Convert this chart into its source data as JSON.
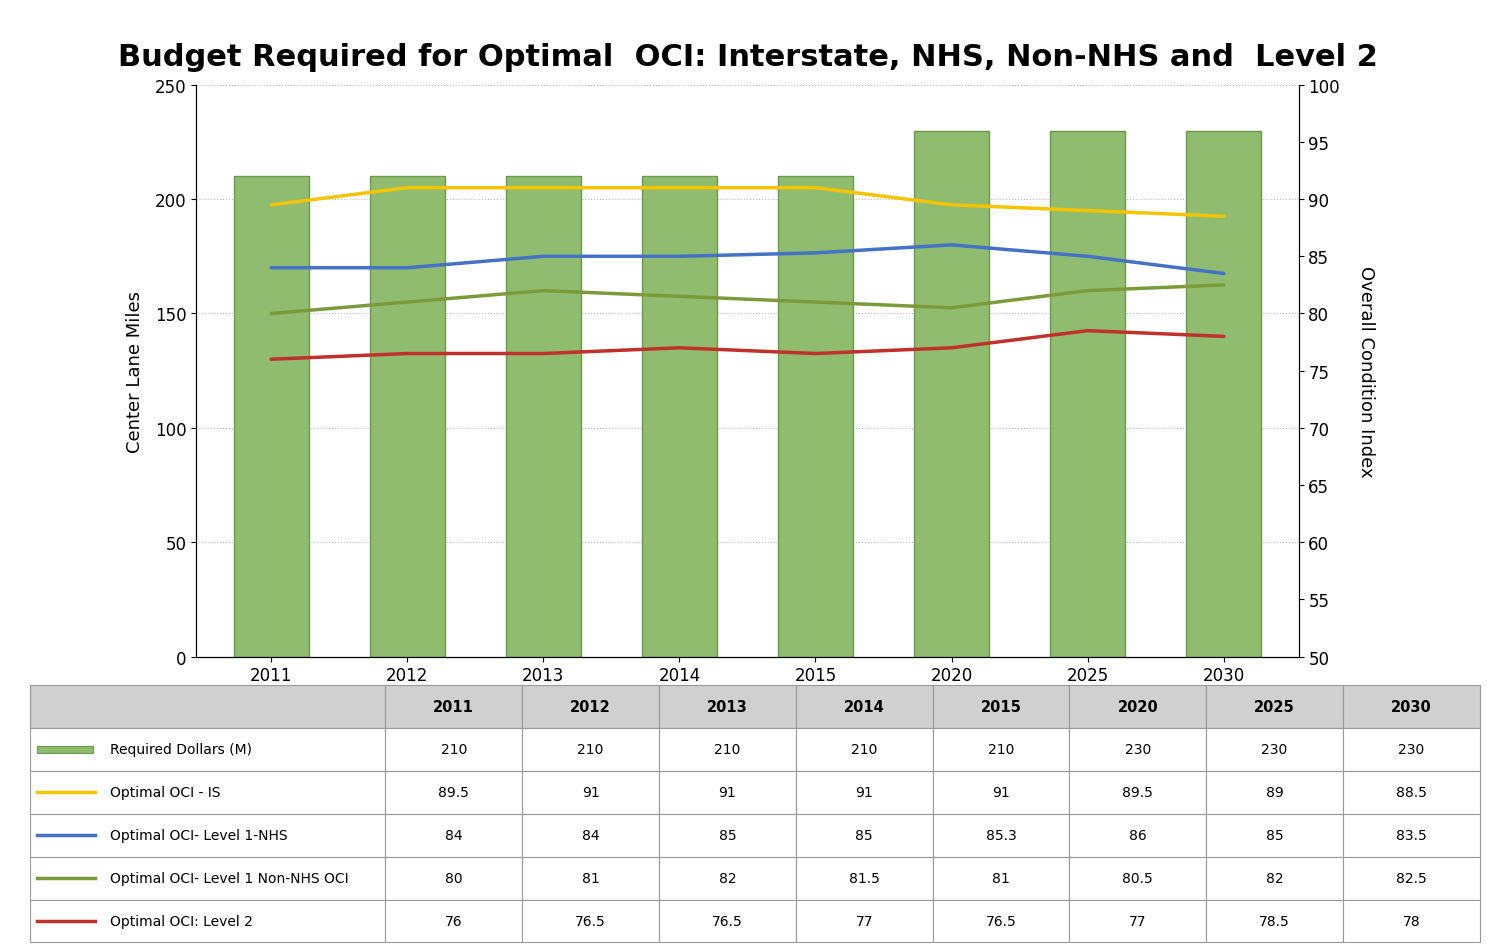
{
  "title": "Budget Required for Optimal  OCI: Interstate, NHS, Non-NHS and  Level 2",
  "years": [
    2011,
    2012,
    2013,
    2014,
    2015,
    2020,
    2025,
    2030
  ],
  "bar_values": [
    210,
    210,
    210,
    210,
    210,
    230,
    230,
    230
  ],
  "bar_color": "#8FBC6F",
  "bar_edge_color": "#6A9A4A",
  "oci_is": [
    89.5,
    91.0,
    91.0,
    91.0,
    91.0,
    89.5,
    89.0,
    88.5
  ],
  "oci_nhs": [
    84.0,
    84.0,
    85.0,
    85.0,
    85.3,
    86.0,
    85.0,
    83.5
  ],
  "oci_non_nhs": [
    80.0,
    81.0,
    82.0,
    81.5,
    81.0,
    80.5,
    82.0,
    82.5
  ],
  "oci_level2": [
    76.0,
    76.5,
    76.5,
    77.0,
    76.5,
    77.0,
    78.5,
    78.0
  ],
  "line_colors": [
    "#F5C400",
    "#4472C4",
    "#7B9B3A",
    "#C0312B"
  ],
  "line_labels": [
    "Optimal OCI - IS",
    "Optimal OCI- Level 1-NHS",
    "Optimal OCI- Level 1 Non-NHS OCI",
    "Optimal OCI: Level 2"
  ],
  "bar_label": "Required Dollars (M)",
  "left_ylabel": "Center Lane Miles",
  "right_ylabel": "Overall Condition Index",
  "ylim_left": [
    0,
    250
  ],
  "ylim_right": [
    50,
    100
  ],
  "yticks_left": [
    0,
    50,
    100,
    150,
    200,
    250
  ],
  "yticks_right": [
    50,
    55,
    60,
    65,
    70,
    75,
    80,
    85,
    90,
    95,
    100
  ],
  "background_color": "#FFFFFF",
  "grid_color": "#BBBBBB",
  "title_fontsize": 22,
  "axis_fontsize": 13,
  "tick_fontsize": 12,
  "table_header_color": "#D0D0D0",
  "oci_is_display": [
    "89.5",
    "91",
    "91",
    "91",
    "91",
    "89.5",
    "89",
    "88.5"
  ],
  "oci_nhs_display": [
    "84",
    "84",
    "85",
    "85",
    "85.3",
    "86",
    "85",
    "83.5"
  ],
  "oci_non_nhs_display": [
    "80",
    "81",
    "82",
    "81.5",
    "81",
    "80.5",
    "82",
    "82.5"
  ],
  "oci_level2_display": [
    "76",
    "76.5",
    "76.5",
    "77",
    "76.5",
    "77",
    "78.5",
    "78"
  ],
  "bar_display": [
    "210",
    "210",
    "210",
    "210",
    "210",
    "230",
    "230",
    "230"
  ]
}
